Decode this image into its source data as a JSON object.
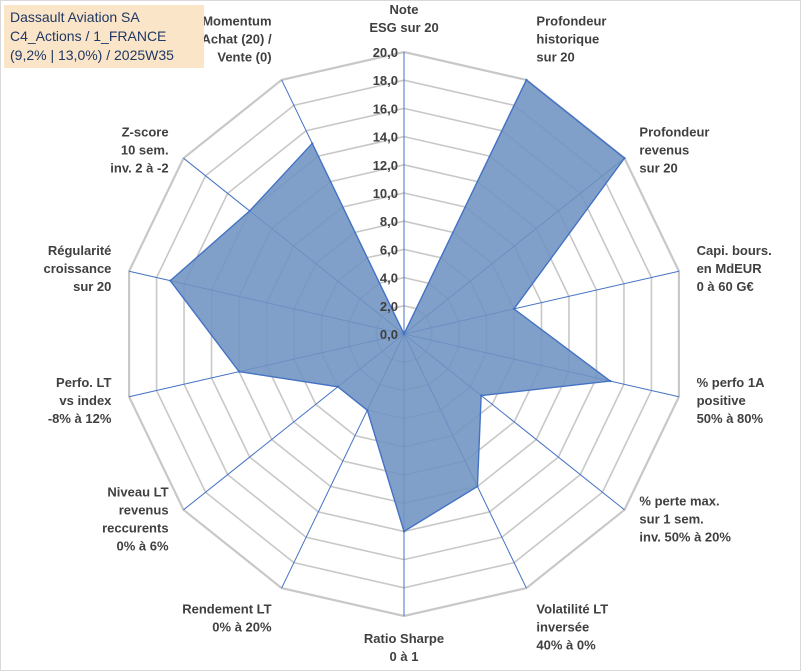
{
  "title_box": {
    "line1": "Dassault Aviation SA",
    "line2": "C4_Actions / 1_FRANCE",
    "line3": "(9,2% | 13,0%) / 2025W35",
    "background": "#fbe5c8"
  },
  "chart_data": {
    "type": "radar",
    "title": "Dassault Aviation SA",
    "rlim": [
      0,
      20
    ],
    "tick_step": 2,
    "tick_labels": [
      "0,0",
      "2,0",
      "4,0",
      "6,0",
      "8,0",
      "10,0",
      "12,0",
      "14,0",
      "16,0",
      "18,0",
      "20,0"
    ],
    "grid": true,
    "colors": {
      "fill": "#6f93c2",
      "stroke": "#4472c4",
      "grid": "#c8c8c8"
    },
    "axes": [
      [
        "Note",
        "ESG sur 20"
      ],
      [
        "Profondeur",
        "historique",
        "sur 20"
      ],
      [
        "Profondeur",
        "revenus",
        "sur 20"
      ],
      [
        "Capi. bours.",
        "en MdEUR",
        "0 à 60 G€"
      ],
      [
        "% perfo 1A",
        "positive",
        "50% à 80%"
      ],
      [
        "% perte max.",
        "sur 1 sem.",
        "inv. 50% à 20%"
      ],
      [
        "Volatilité LT",
        "inversée",
        "40% à 0%"
      ],
      [
        "Ratio Sharpe",
        "0 à 1"
      ],
      [
        "Rendement LT",
        "0% à 20%"
      ],
      [
        "Niveau LT",
        "revenus",
        "reccurents",
        "0% à 6%"
      ],
      [
        "Perfo. LT",
        "vs index",
        "-8% à 12%"
      ],
      [
        "Régularité",
        "croissance",
        "sur 20"
      ],
      [
        "Z-score",
        "10 sem.",
        "inv. 2 à -2"
      ],
      [
        "Momentum",
        "Achat (20) /",
        "Vente (0)"
      ]
    ],
    "series": [
      {
        "values": [
          0,
          20,
          20,
          8,
          15,
          7,
          12,
          14,
          6,
          6,
          12,
          17,
          14,
          15
        ]
      }
    ]
  }
}
